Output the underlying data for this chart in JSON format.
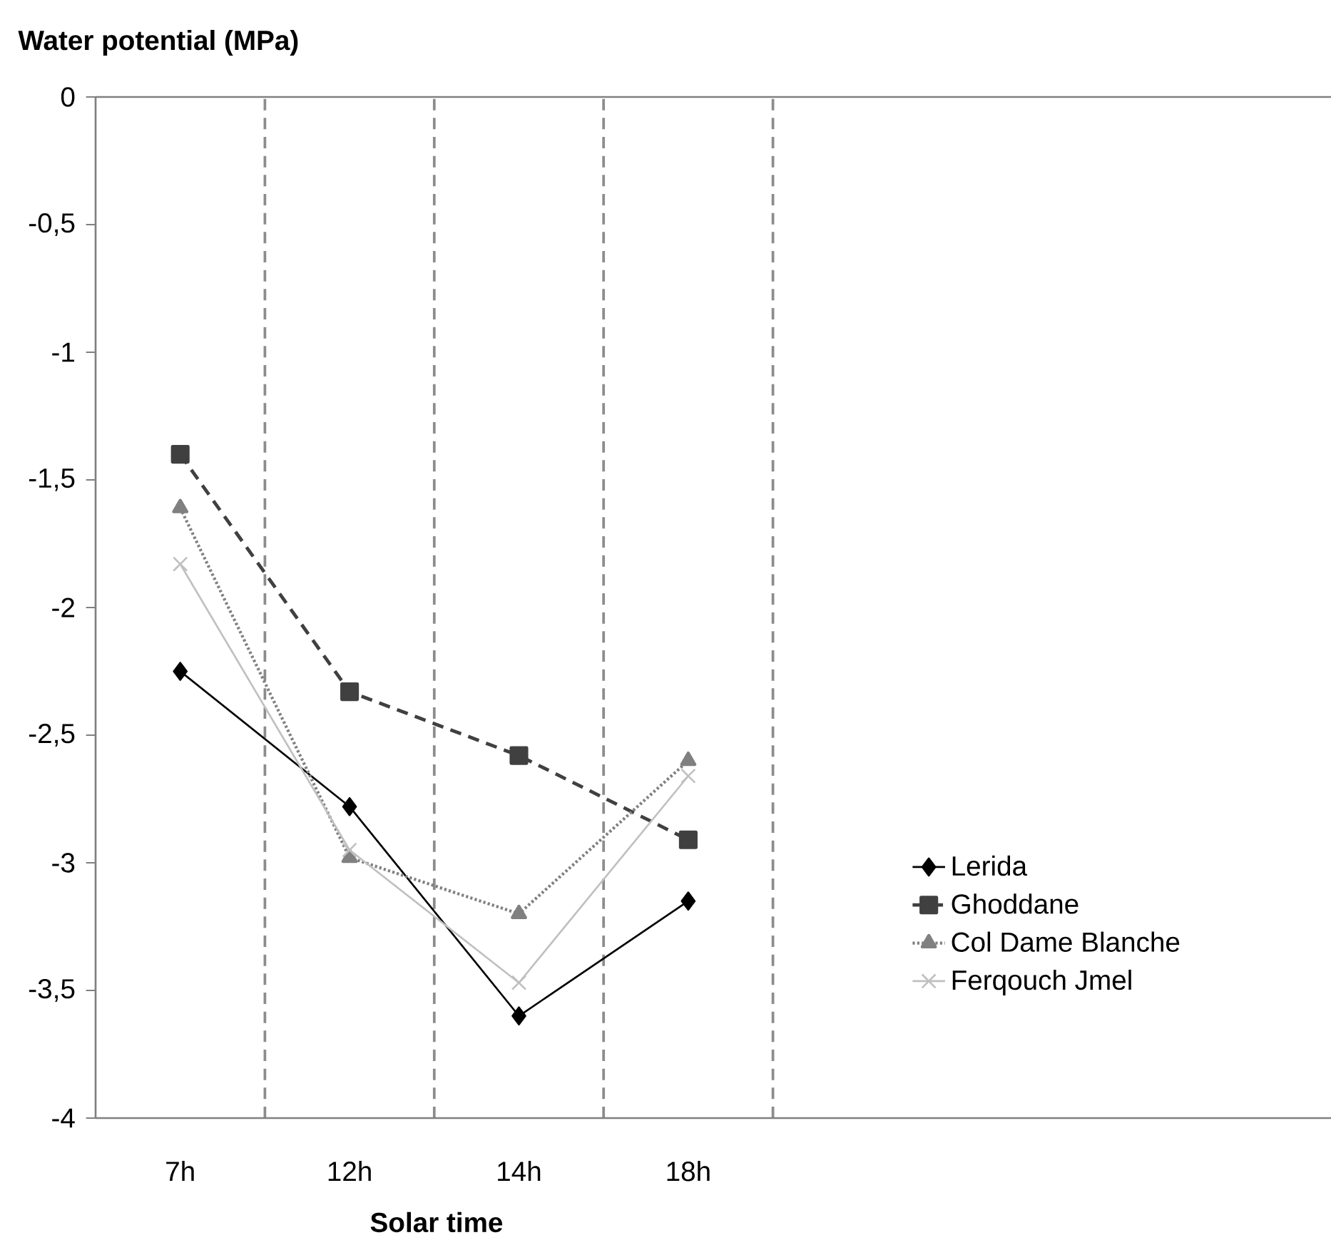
{
  "chart_data": {
    "type": "line",
    "ylabel": "Water potential (MPa)",
    "xlabel": "Solar time",
    "categories": [
      "7h",
      "12h",
      "14h",
      "18h"
    ],
    "series": [
      {
        "name": "Lerida",
        "color": "#000000",
        "marker": "diamond",
        "line_style": "solid",
        "values": [
          -2.25,
          -2.78,
          -3.6,
          -3.15
        ]
      },
      {
        "name": "Ghoddane",
        "color": "#404040",
        "marker": "square",
        "line_style": "dashed",
        "values": [
          -1.4,
          -2.33,
          -2.58,
          -2.91
        ]
      },
      {
        "name": "Col Dame Blanche",
        "color": "#808080",
        "marker": "triangle",
        "line_style": "dotted",
        "values": [
          -1.61,
          -2.98,
          -3.2,
          -2.6
        ]
      },
      {
        "name": "Ferqouch Jmel",
        "color": "#c0c0c0",
        "marker": "cross",
        "line_style": "solid",
        "values": [
          -1.83,
          -2.95,
          -3.47,
          -2.66
        ]
      }
    ],
    "ylim": [
      -4,
      0
    ],
    "yticks": [
      -4,
      {
        "value": -3.5,
        "label": "-3,5"
      },
      -3,
      {
        "value": -2.5,
        "label": "-2,5"
      },
      -2,
      {
        "value": -1.5,
        "label": "-1,5"
      },
      -1,
      {
        "value": -0.5,
        "label": "-0,5"
      },
      0
    ],
    "grid": "x",
    "legend": "bottom right"
  }
}
